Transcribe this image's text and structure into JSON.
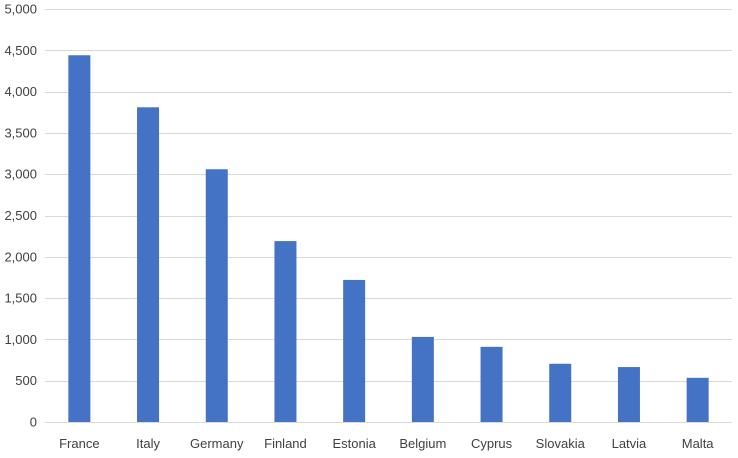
{
  "chart_data": {
    "type": "bar",
    "title": "",
    "xlabel": "",
    "ylabel": "",
    "categories": [
      "France",
      "Italy",
      "Germany",
      "Finland",
      "Estonia",
      "Belgium",
      "Cyprus",
      "Slovakia",
      "Latvia",
      "Malta"
    ],
    "values": [
      4440,
      3810,
      3060,
      2190,
      1720,
      1030,
      910,
      705,
      665,
      535
    ],
    "ylim": [
      0,
      5000
    ],
    "yticks": [
      0,
      500,
      1000,
      1500,
      2000,
      2500,
      3000,
      3500,
      4000,
      4500,
      5000
    ],
    "ytick_labels": [
      "0",
      "500",
      "1,000",
      "1,500",
      "2,000",
      "2,500",
      "3,000",
      "3,500",
      "4,000",
      "4,500",
      "5,000"
    ],
    "grid": true,
    "legend": "none",
    "bar_color": "#4472C4",
    "grid_color": "#D9D9D9"
  }
}
